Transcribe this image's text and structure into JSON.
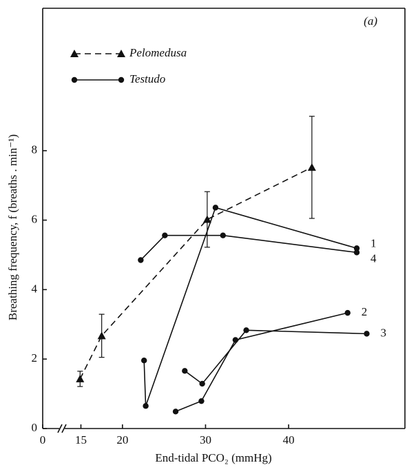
{
  "chart_data": {
    "type": "line",
    "annotation": "(a)",
    "x_label": "End-tidal PCO₂ (mmHg)",
    "y_label": "Breathing frequency, f (breaths . min⁻¹)",
    "xlim": [
      10.4,
      54
    ],
    "ylim": [
      0,
      12.1
    ],
    "xticks": [
      0,
      15,
      20,
      30,
      40
    ],
    "yticks": [
      0,
      2,
      4,
      6,
      8
    ],
    "x_axis_break": true,
    "legend": "upper left",
    "series": [
      {
        "name": "Pelomedusa",
        "color": "#111111",
        "marker": "triangle",
        "dashed": true,
        "x": [
          14.9,
          17.5,
          30.2,
          42.8
        ],
        "values": [
          1.43,
          2.67,
          6.02,
          7.52
        ],
        "errors": [
          0.22,
          0.62,
          0.8,
          1.47
        ]
      },
      {
        "name": "Testudo",
        "color": "#111111",
        "marker": "circle",
        "dashed": false,
        "lines": [
          {
            "label": "1",
            "x": [
              22.6,
              22.8,
              31.2,
              48.2
            ],
            "values": [
              1.96,
              0.65,
              6.36,
              5.19
            ]
          },
          {
            "label": "2",
            "x": [
              26.4,
              29.5,
              33.6,
              47.1
            ],
            "values": [
              0.49,
              0.79,
              2.55,
              3.33
            ]
          },
          {
            "label": "3",
            "x": [
              27.5,
              29.6,
              34.9,
              49.4
            ],
            "values": [
              1.66,
              1.29,
              2.83,
              2.73
            ]
          },
          {
            "label": "4",
            "x": [
              22.2,
              25.1,
              32.1,
              48.2
            ],
            "values": [
              4.85,
              5.56,
              5.56,
              5.07
            ]
          }
        ]
      }
    ]
  }
}
